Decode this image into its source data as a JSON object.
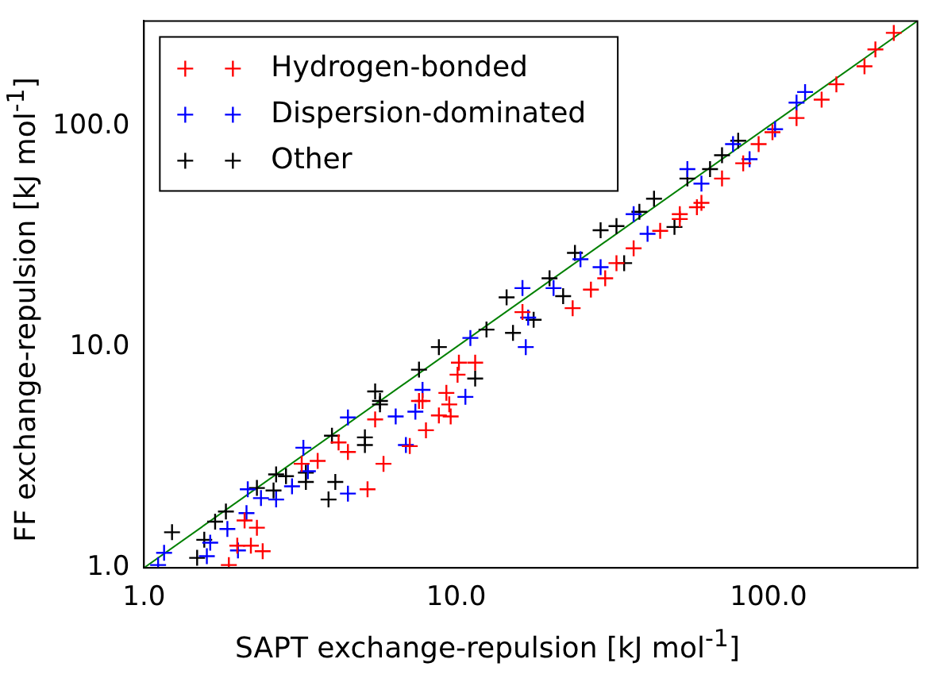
{
  "chart_data": {
    "type": "scatter",
    "xlabel": "SAPT exchange-repulsion [kJ mol$^{-1}$]",
    "ylabel": "FF exchange-repulsion [kJ mol$^{-1}$]",
    "log": "xy",
    "xlim": [
      1,
      300
    ],
    "ylim": [
      1,
      300
    ],
    "xticks": [
      {
        "value": 1,
        "label": "1.0"
      },
      {
        "value": 10,
        "label": "10.0"
      },
      {
        "value": 100,
        "label": "100.0"
      }
    ],
    "yticks": [
      {
        "value": 1,
        "label": "1.0"
      },
      {
        "value": 10,
        "label": "10.0"
      },
      {
        "value": 100,
        "label": "100.0"
      }
    ],
    "grid": false,
    "legend": "top left",
    "series": [
      {
        "name": "Hydrogen-bonded",
        "color": "#ff0000",
        "marker": "cross",
        "x": [
          1.87,
          1.99,
          2.1,
          2.2,
          2.3,
          2.4,
          3.2,
          3.6,
          4.2,
          4.5,
          5.2,
          5.5,
          5.85,
          7.1,
          7.8,
          8.0,
          8.8,
          9.5,
          9.6,
          7.6,
          9.3,
          10.1,
          10.2,
          11.5,
          16.3,
          23.6,
          27,
          30,
          32.6,
          37,
          45,
          52,
          59,
          52,
          61,
          71,
          83,
          93,
          103,
          123,
          148,
          165,
          203,
          220,
          252
        ],
        "values": [
          1.03,
          1.26,
          1.64,
          1.26,
          1.52,
          1.19,
          2.96,
          3.05,
          3.7,
          3.35,
          2.27,
          4.7,
          2.96,
          3.56,
          5.7,
          4.2,
          4.9,
          5.5,
          4.85,
          5.7,
          6.2,
          7.5,
          8.5,
          8.5,
          14.4,
          15,
          18.2,
          20.5,
          24,
          28,
          33.6,
          38,
          43,
          40,
          45,
          58,
          68,
          83,
          94,
          109,
          132,
          155,
          187,
          223,
          265
        ]
      },
      {
        "name": "Dispersion-dominated",
        "color": "#0000ff",
        "marker": "cross",
        "x": [
          1.11,
          1.16,
          1.59,
          1.63,
          1.85,
          2.0,
          2.13,
          2.15,
          2.37,
          2.65,
          2.98,
          3.24,
          3.35,
          4.5,
          4.5,
          6.4,
          6.9,
          7.4,
          10.7,
          7.8,
          11.1,
          16.7,
          16.3,
          17,
          20.5,
          25,
          29,
          37,
          41,
          55,
          61,
          77,
          87,
          105,
          123,
          131
        ],
        "values": [
          1.03,
          1.17,
          1.13,
          1.3,
          1.5,
          1.2,
          1.77,
          2.27,
          2.07,
          2.04,
          2.34,
          3.5,
          2.74,
          2.17,
          4.8,
          4.85,
          3.6,
          5.1,
          5.95,
          6.4,
          11.0,
          10,
          18.5,
          13.6,
          18.5,
          25,
          23,
          40,
          32.6,
          64,
          55,
          83,
          71,
          97,
          128,
          143
        ]
      },
      {
        "name": "Other",
        "color": "#000000",
        "marker": "cross",
        "x": [
          1.23,
          1.48,
          1.56,
          1.69,
          1.83,
          2.3,
          2.6,
          2.65,
          2.85,
          3.3,
          3.3,
          3.9,
          4.1,
          4.0,
          5.1,
          5.1,
          5.7,
          5.5,
          5.7,
          7.6,
          8.8,
          11.5,
          12.5,
          15.2,
          17.7,
          14.5,
          19.9,
          24,
          22,
          29,
          32.6,
          34.5,
          38.6,
          50,
          55,
          65,
          43,
          71,
          80
        ],
        "values": [
          1.45,
          1.11,
          1.34,
          1.62,
          1.8,
          2.3,
          2.24,
          2.65,
          2.6,
          2.7,
          2.45,
          2.04,
          2.45,
          3.97,
          3.9,
          3.6,
          5.5,
          6.3,
          5.7,
          7.9,
          10,
          7.2,
          12,
          11.6,
          13.3,
          16.8,
          20.5,
          26.7,
          17,
          33.8,
          35.3,
          24,
          41,
          35,
          58,
          64,
          47,
          74,
          86
        ]
      },
      {
        "type": "line",
        "color": "#008000",
        "marker": "none",
        "x": [
          1,
          300
        ],
        "values": [
          1,
          300
        ]
      }
    ]
  }
}
